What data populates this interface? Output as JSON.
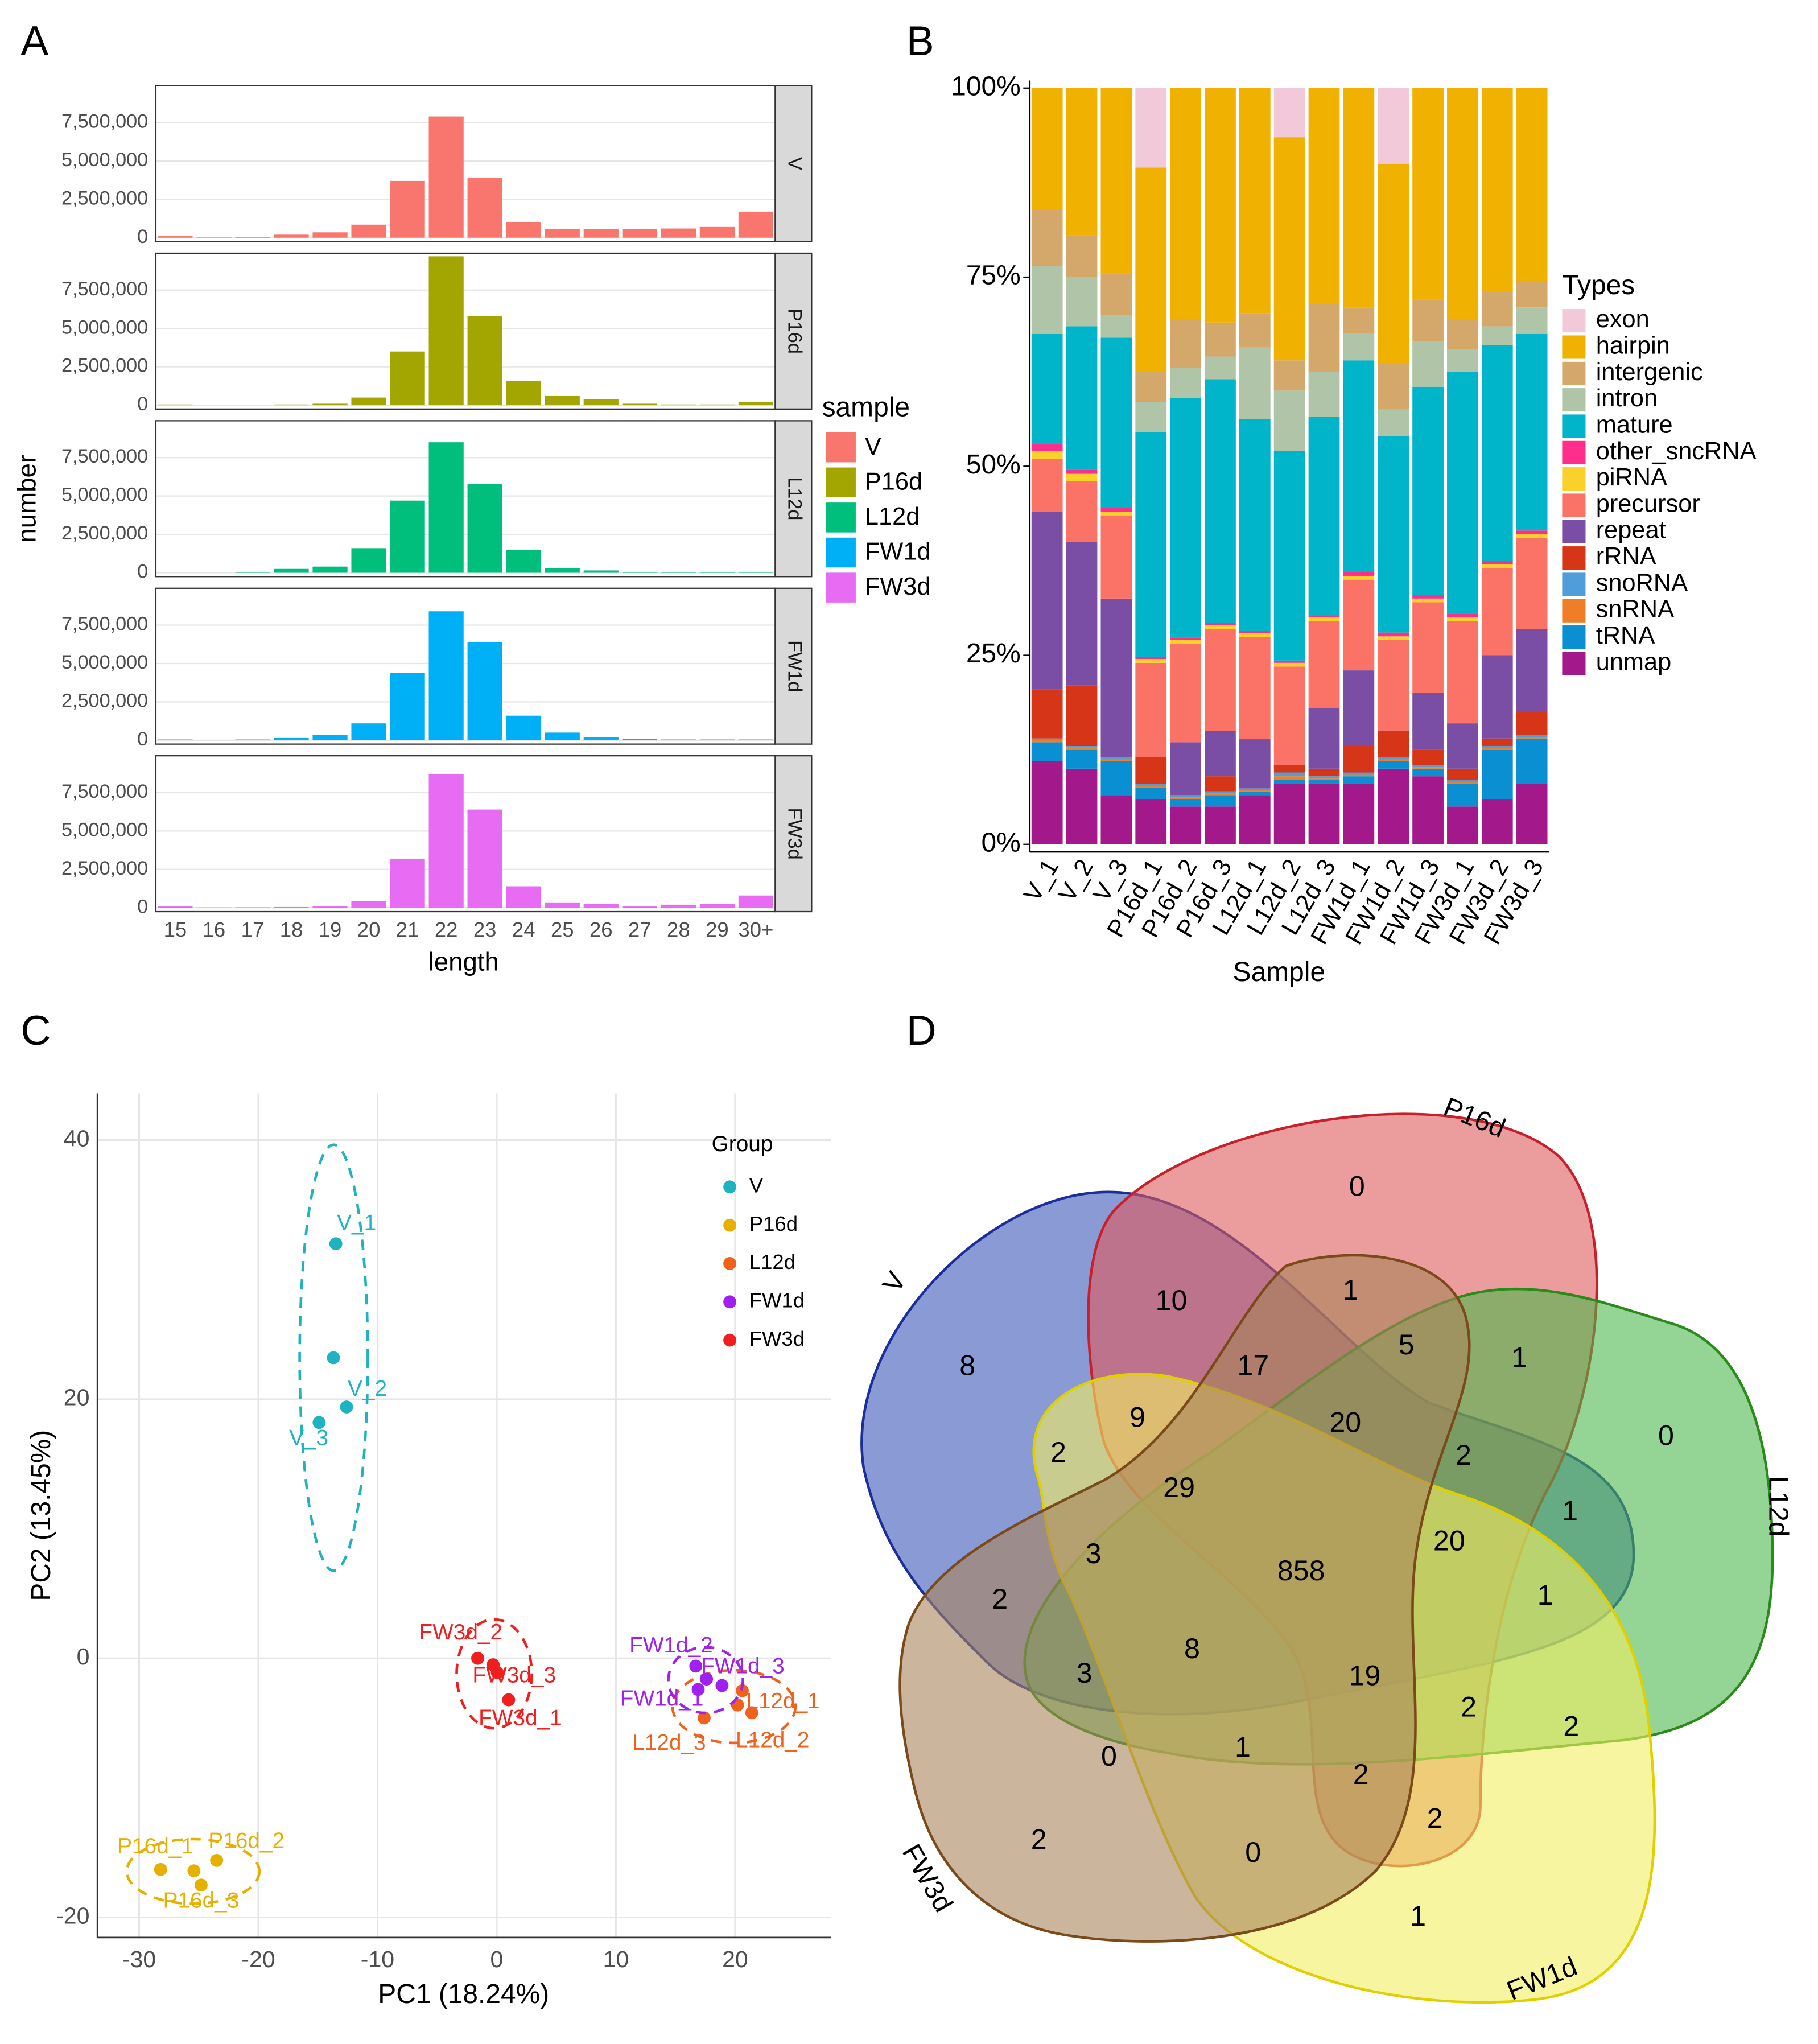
{
  "chart_data": [
    {
      "type": "bar",
      "panel": "A",
      "facets": true,
      "x_label": "length",
      "y_label": "number",
      "legend_title": "sample",
      "categories": [
        "15",
        "16",
        "17",
        "18",
        "19",
        "20",
        "21",
        "22",
        "23",
        "24",
        "25",
        "26",
        "27",
        "28",
        "29",
        "30+"
      ],
      "ylim": [
        -250000,
        9900000
      ],
      "yticks": [
        0,
        {
          "value": 2500000,
          "label": "2,500,000"
        },
        {
          "value": 5000000,
          "label": "5,000,000"
        },
        {
          "value": 7500000,
          "label": "7,500,000"
        }
      ],
      "grid": true,
      "series": [
        {
          "name": "V",
          "color": "#F8766D",
          "values": [
            100000,
            20000,
            50000,
            200000,
            350000,
            850000,
            3700000,
            7900000,
            3900000,
            1000000,
            550000,
            550000,
            550000,
            600000,
            700000,
            1700000
          ]
        },
        {
          "name": "P16d",
          "color": "#A3A500",
          "values": [
            50000,
            0,
            0,
            50000,
            100000,
            500000,
            3500000,
            9700000,
            5800000,
            1600000,
            600000,
            400000,
            100000,
            50000,
            50000,
            200000
          ]
        },
        {
          "name": "L12d",
          "color": "#00BF7D",
          "values": [
            0,
            0,
            50000,
            250000,
            400000,
            1600000,
            4700000,
            8500000,
            5800000,
            1500000,
            300000,
            150000,
            50000,
            20000,
            20000,
            20000
          ]
        },
        {
          "name": "FW1d",
          "color": "#00B0F6",
          "values": [
            50000,
            20000,
            50000,
            150000,
            350000,
            1100000,
            4400000,
            8400000,
            6400000,
            1600000,
            500000,
            200000,
            100000,
            50000,
            50000,
            50000
          ]
        },
        {
          "name": "FW3d",
          "color": "#E76BF3",
          "values": [
            100000,
            20000,
            30000,
            50000,
            100000,
            450000,
            3200000,
            8700000,
            6400000,
            1400000,
            350000,
            250000,
            100000,
            200000,
            250000,
            800000
          ]
        }
      ]
    },
    {
      "type": "bar",
      "panel": "B",
      "stacked": true,
      "x_label": "Sample",
      "legend_title": "Types",
      "categories": [
        "V_1",
        "V_2",
        "V_3",
        "P16d_1",
        "P16d_2",
        "P16d_3",
        "L12d_1",
        "L12d_2",
        "L12d_3",
        "FW1d_1",
        "FW1d_2",
        "FW1d_3",
        "FW3d_1",
        "FW3d_2",
        "FW3d_3"
      ],
      "ylim": [
        -1,
        101
      ],
      "yticks": [
        {
          "value": 0,
          "label": "0%"
        },
        {
          "value": 25,
          "label": "25%"
        },
        {
          "value": 50,
          "label": "50%"
        },
        {
          "value": 75,
          "label": "75%"
        },
        {
          "value": 100,
          "label": "100%"
        }
      ],
      "series": [
        {
          "name": "exon",
          "color": "#F2C9D8",
          "values": [
            0,
            0,
            0,
            10.5,
            0,
            0,
            0,
            6.5,
            0,
            0,
            10,
            0,
            0,
            0,
            0
          ]
        },
        {
          "name": "hairpin",
          "color": "#F0B100",
          "values": [
            16,
            19.5,
            24.5,
            27,
            30.5,
            31,
            29.8,
            29.5,
            28.5,
            29,
            26.5,
            28,
            30.5,
            27,
            25.5
          ]
        },
        {
          "name": "intergenic",
          "color": "#D4A76A",
          "values": [
            7.5,
            5.5,
            5.5,
            4,
            6.5,
            4.5,
            4.5,
            4,
            9,
            3.5,
            6,
            5.5,
            4,
            4.5,
            3.5
          ]
        },
        {
          "name": "intron",
          "color": "#B0C4A8",
          "values": [
            9,
            6.5,
            3,
            4,
            4,
            3,
            9.5,
            8,
            6,
            3.5,
            3.5,
            6,
            3,
            2.5,
            3.5
          ]
        },
        {
          "name": "mature",
          "color": "#00B5C9",
          "values": [
            14.5,
            19,
            22.5,
            29.7,
            31.7,
            32.2,
            28,
            27.7,
            26.2,
            28,
            26,
            27.5,
            32,
            28.5,
            26
          ]
        },
        {
          "name": "other_sncRNA",
          "color": "#FF2E8C",
          "values": [
            1,
            0.5,
            0.5,
            0.3,
            0.3,
            0.3,
            0.3,
            0.3,
            0.3,
            0.5,
            0.5,
            0.5,
            0.5,
            0.5,
            0.5
          ]
        },
        {
          "name": "piRNA",
          "color": "#F9D12A",
          "values": [
            1,
            1,
            0.5,
            0.5,
            0.5,
            0.5,
            0.5,
            0.5,
            0.5,
            0.5,
            0.5,
            0.5,
            0.5,
            0.5,
            0.5
          ]
        },
        {
          "name": "precursor",
          "color": "#FB7366",
          "values": [
            7,
            8,
            11,
            12.5,
            13,
            13.5,
            13.5,
            13,
            11.5,
            12,
            12,
            12,
            13.5,
            11.5,
            12
          ]
        },
        {
          "name": "repeat",
          "color": "#7B4EA5",
          "values": [
            23.5,
            19,
            21,
            0,
            7,
            6,
            6.5,
            0,
            8,
            10,
            0,
            7.5,
            6,
            11,
            11
          ]
        },
        {
          "name": "rRNA",
          "color": "#D63518",
          "values": [
            6.5,
            8,
            0,
            3.5,
            0,
            2,
            0,
            1,
            1,
            3.5,
            3.5,
            2,
            1.5,
            1,
            3
          ]
        },
        {
          "name": "snoRNA",
          "color": "#4F9ED9",
          "values": [
            0.2,
            0.2,
            0.3,
            0.3,
            0.3,
            0.3,
            0.2,
            0.5,
            0.3,
            0.3,
            0.3,
            0.3,
            0.3,
            0.3,
            0.3
          ]
        },
        {
          "name": "snRNA",
          "color": "#F07E26",
          "values": [
            0.3,
            0.3,
            0.2,
            0.2,
            0.2,
            0.2,
            0.2,
            0.5,
            0.2,
            0.2,
            0.2,
            0.2,
            0.2,
            0.2,
            0.2
          ]
        },
        {
          "name": "tRNA",
          "color": "#0A8FD3",
          "values": [
            2.5,
            2.5,
            4.5,
            1.5,
            1,
            1.5,
            0.5,
            0.5,
            0.5,
            1,
            1,
            1,
            3,
            6.5,
            6
          ]
        },
        {
          "name": "unmap",
          "color": "#A3188B",
          "values": [
            11,
            10,
            6.5,
            6,
            5,
            5,
            6.5,
            8,
            8,
            8,
            10,
            9,
            5,
            6,
            8
          ]
        }
      ]
    },
    {
      "type": "scatter",
      "panel": "C",
      "x_label": "PC1 (18.24%)",
      "y_label": "PC2 (13.45%)",
      "legend_title": "Group",
      "xlim": [
        -33.5,
        28.05
      ],
      "ylim": [
        -21.55,
        43.6
      ],
      "xticks": [
        -30,
        -20,
        -10,
        0,
        10,
        20
      ],
      "yticks": [
        -20,
        0,
        20,
        40
      ],
      "grid": true,
      "series": [
        {
          "name": "V",
          "color": "#1FB3C1",
          "x": [
            -13.5,
            -13.7,
            -12.6,
            -14.9
          ],
          "values": [
            32,
            23.2,
            19.4,
            18.2
          ],
          "labels": [
            "V_1",
            null,
            "V_2",
            "V_3"
          ]
        },
        {
          "name": "P16d",
          "color": "#E5B000",
          "x": [
            -28.2,
            -25.4,
            -24.8,
            -23.5
          ],
          "values": [
            -16.3,
            -16.4,
            -17.5,
            -15.6
          ],
          "labels": [
            "P16d_1",
            null,
            "P16d_3",
            "P16d_2"
          ]
        },
        {
          "name": "L12d",
          "color": "#F0611C",
          "x": [
            17.4,
            20.2,
            21.4,
            20.6
          ],
          "values": [
            -4.6,
            -3.6,
            -4.2,
            -2.5
          ],
          "labels": [
            "L12d_3",
            "L12d_1",
            "L12d_2",
            null
          ]
        },
        {
          "name": "FW1d",
          "color": "#A020F0",
          "x": [
            16.7,
            17.6,
            18.9,
            16.9
          ],
          "values": [
            -0.6,
            -1.6,
            -2.1,
            -2.4
          ],
          "labels": [
            "FW1d_2",
            null,
            "FW1d_3",
            "FW1d_1"
          ]
        },
        {
          "name": "FW3d",
          "color": "#F01E1E",
          "x": [
            -1.6,
            -0.3,
            0.05,
            1.0
          ],
          "values": [
            0,
            -0.5,
            -1.1,
            -3.2
          ],
          "labels": [
            "FW3d_2",
            null,
            "FW3d_3",
            "FW3d_1"
          ]
        }
      ]
    },
    {
      "type": "venn",
      "panel": "D",
      "sets": [
        "V",
        "P16d",
        "L12d",
        "FW1d",
        "FW3d"
      ],
      "colors": [
        "#3A56B8",
        "#DE5A5A",
        "#4DB84D",
        "#F2EE60",
        "#A8845A"
      ],
      "values": [
        8,
        0,
        0,
        1,
        2,
        10,
        1,
        5,
        1,
        17,
        9,
        20,
        2,
        2,
        29,
        1,
        20,
        3,
        858,
        2,
        1,
        8,
        3,
        19,
        2,
        2,
        0,
        1,
        2,
        2,
        0
      ]
    }
  ]
}
